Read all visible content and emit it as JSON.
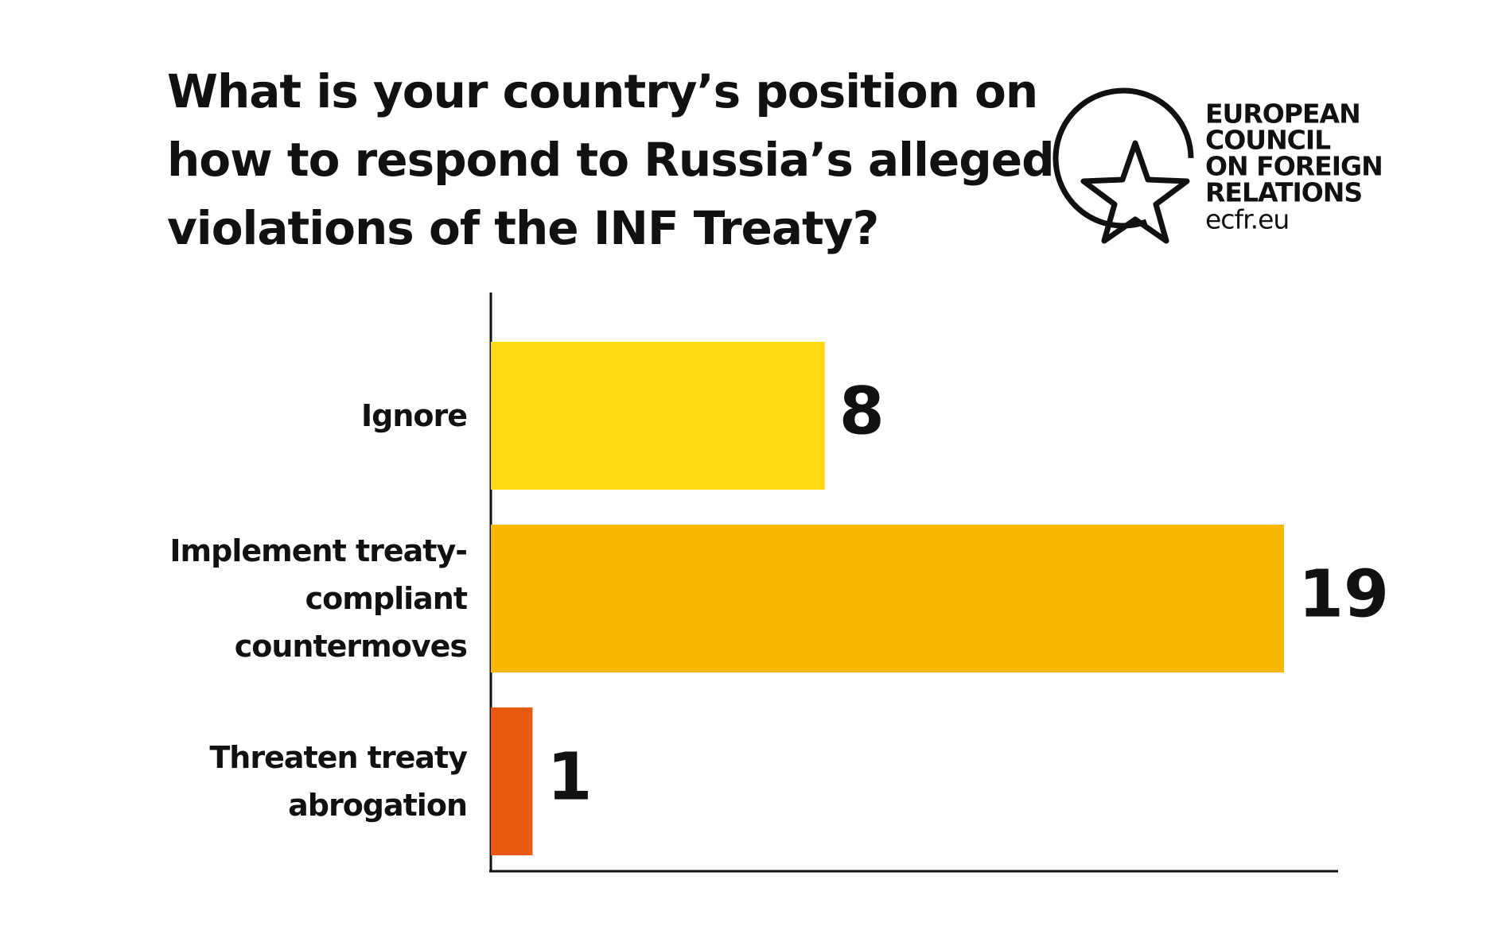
{
  "chart_data": {
    "type": "bar",
    "orientation": "horizontal",
    "title": "What is your country’s position on how to respond to Russia’s alleged violations of the INF Treaty?",
    "categories": [
      "Ignore",
      "Implement treaty-compliant countermoves",
      "Threaten treaty abrogation"
    ],
    "values": [
      8,
      19,
      1
    ],
    "colors": [
      "#fddc14",
      "#f9b700",
      "#e85a12"
    ]
  },
  "logo": {
    "lines": [
      "EUROPEAN",
      "COUNCIL",
      "ON FOREIGN",
      "RELATIONS"
    ],
    "url": "ecfr.eu"
  }
}
